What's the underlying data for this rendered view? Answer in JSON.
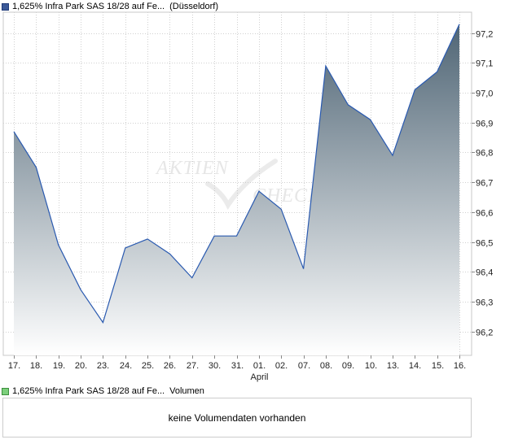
{
  "legend_top": {
    "title": "1,625% Infra Park SAS 18/28 auf Fe...",
    "exchange": "(Düsseldorf)",
    "color": "#3b5998"
  },
  "legend_bottom": {
    "title": "1,625% Infra Park SAS 18/28 auf Fe...",
    "series": "Volumen",
    "color": "#7ccf7c"
  },
  "watermark": {
    "line1": "AKTIEN",
    "line2": "CHECK"
  },
  "volume": {
    "empty_text": "keine Volumendaten vorhanden"
  },
  "chart_data": {
    "type": "area",
    "categories": [
      "17.",
      "18.",
      "19.",
      "20.",
      "23.",
      "24.",
      "25.",
      "26.",
      "27.",
      "30.",
      "31.",
      "01.",
      "02.",
      "07.",
      "08.",
      "09.",
      "10.",
      "13.",
      "14.",
      "15.",
      "16."
    ],
    "month_label": {
      "at": "01.",
      "text": "April"
    },
    "values": [
      96.87,
      96.75,
      96.49,
      96.34,
      96.23,
      96.48,
      96.51,
      96.46,
      96.38,
      96.52,
      96.52,
      96.67,
      96.61,
      96.41,
      97.09,
      96.96,
      96.91,
      96.79,
      97.01,
      97.07,
      97.23
    ],
    "ylim": [
      96.12,
      97.27
    ],
    "yticks": [
      "96,2",
      "96,3",
      "96,4",
      "96,5",
      "96,6",
      "96,7",
      "96,8",
      "96,9",
      "97,0",
      "97,1",
      "97,2"
    ],
    "ytick_values": [
      96.2,
      96.3,
      96.4,
      96.5,
      96.6,
      96.7,
      96.8,
      96.9,
      97.0,
      97.1,
      97.2
    ],
    "grid": "vertical and horizontal dotted",
    "line_color": "#2a5ab0",
    "fill_top": "#4f6575",
    "fill_bottom": "#ffffff",
    "xlabel": "",
    "ylabel": ""
  }
}
